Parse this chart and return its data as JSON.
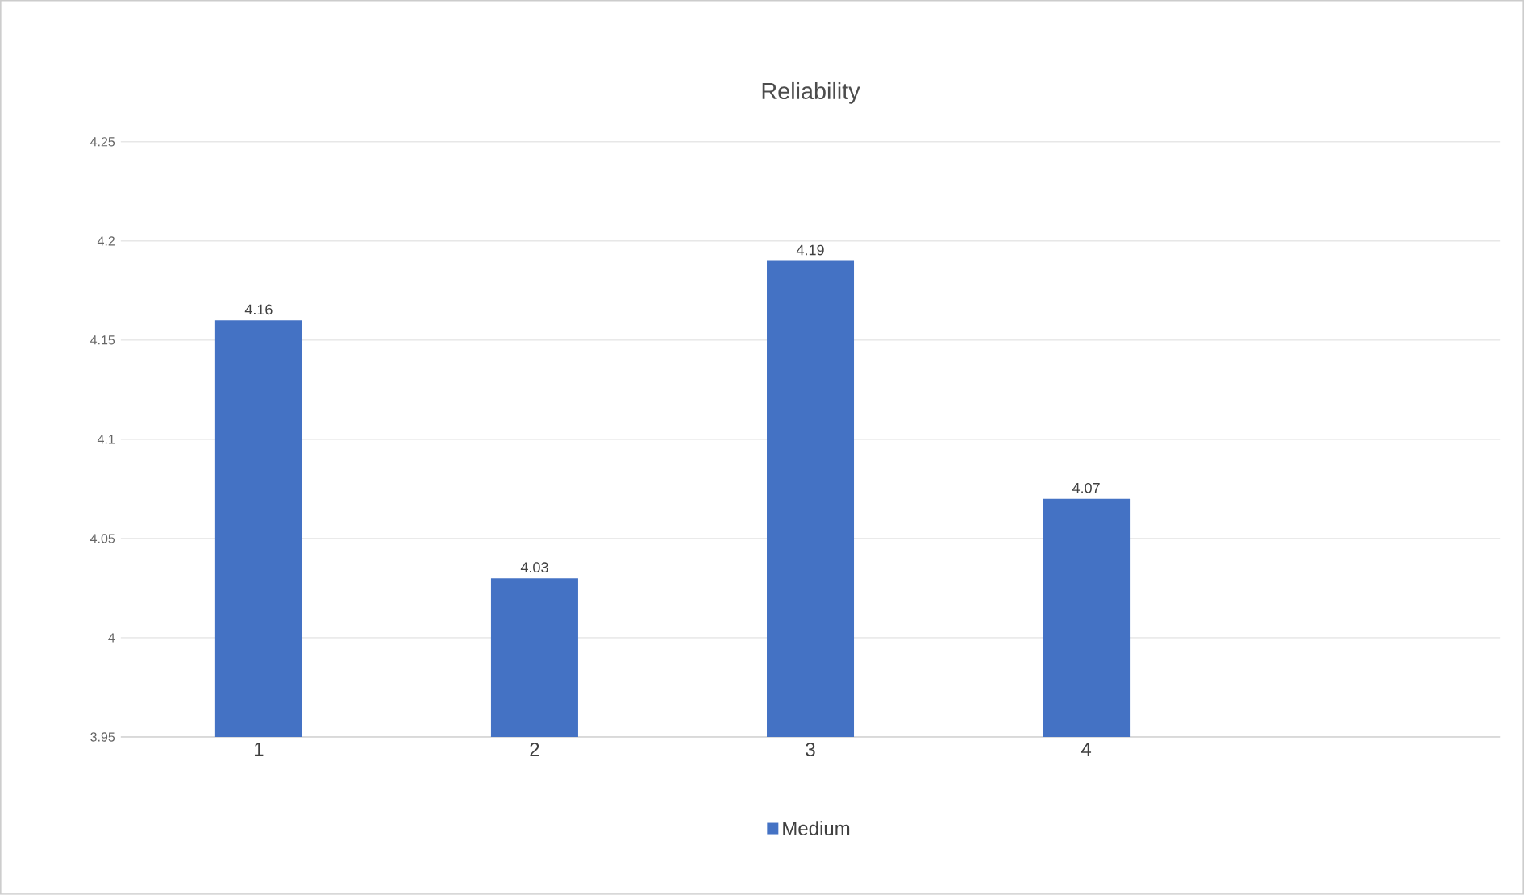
{
  "chart_data": {
    "type": "bar",
    "title": "Reliability",
    "categories": [
      "1",
      "2",
      "3",
      "4",
      null
    ],
    "series": [
      {
        "name": "Medium",
        "color": "#4472c4",
        "values": [
          4.16,
          4.03,
          4.19,
          4.07,
          null
        ]
      }
    ],
    "ylim": [
      3.95,
      4.25
    ],
    "yticks": [
      3.95,
      4,
      4.05,
      4.1,
      4.15,
      4.2,
      4.25
    ],
    "grid": "y",
    "legend": "bottom",
    "data_labels": true
  }
}
